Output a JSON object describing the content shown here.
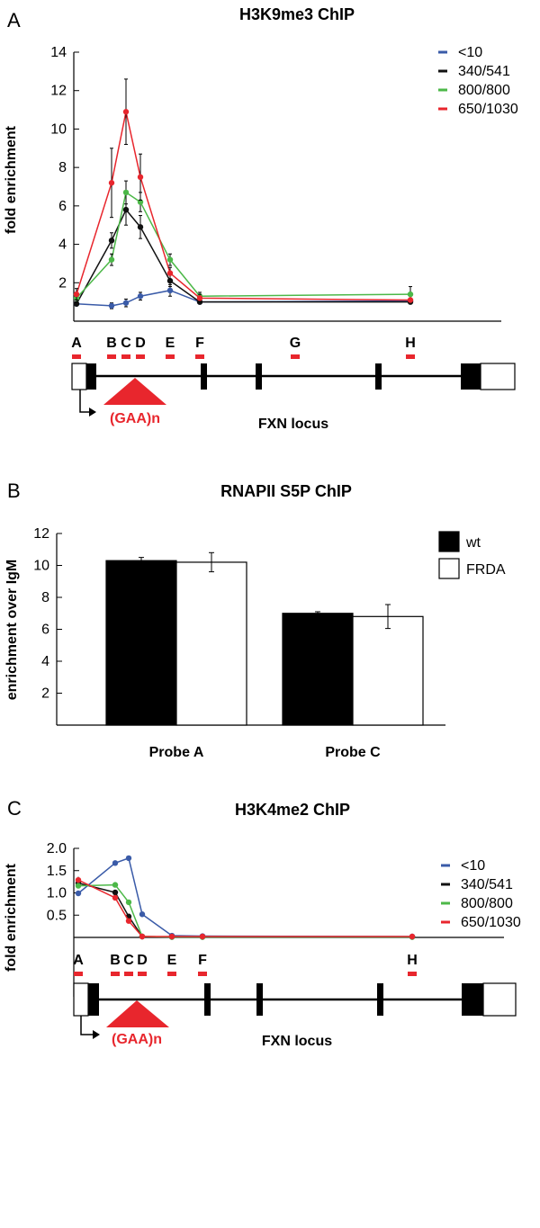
{
  "colors": {
    "blue": "#3a5ba8",
    "black": "#111111",
    "green": "#4cb848",
    "red": "#e8262d",
    "bar_wt": "#000000",
    "bar_frda": "#ffffff"
  },
  "panel_a": {
    "letter": "A",
    "locus_label": "FXN locus",
    "gaa_label": "(GAA)n",
    "probe_letters": [
      "A",
      "B",
      "C",
      "D",
      "E",
      "F",
      "G",
      "H"
    ]
  },
  "panel_b": {
    "letter": "B"
  },
  "panel_c": {
    "letter": "C",
    "locus_label": "FXN locus",
    "gaa_label": "(GAA)n",
    "probe_letters": [
      "A",
      "B",
      "C",
      "D",
      "E",
      "F",
      "H"
    ]
  },
  "chart_data": [
    {
      "type": "line",
      "title": "H3K9me3 ChIP",
      "xlabel": "",
      "ylabel": "fold enrichment",
      "x": [
        "A",
        "B",
        "C",
        "D",
        "E",
        "F",
        "H"
      ],
      "ylim": [
        0,
        14
      ],
      "yticks": [
        2,
        4,
        6,
        8,
        10,
        12,
        14
      ],
      "legend_position": "top-right",
      "series": [
        {
          "name": "<10",
          "color": "#3a5ba8",
          "values": [
            0.9,
            0.8,
            0.95,
            1.3,
            1.6,
            1.0,
            1.05
          ],
          "errors": [
            0.1,
            0.15,
            0.2,
            0.2,
            0.3,
            0.1,
            0.1
          ]
        },
        {
          "name": "340/541",
          "color": "#111111",
          "values": [
            0.9,
            4.2,
            5.8,
            4.9,
            2.1,
            1.0,
            1.0
          ],
          "errors": [
            0.1,
            0.4,
            0.8,
            0.6,
            0.3,
            0.1,
            0.1
          ]
        },
        {
          "name": "800/800",
          "color": "#4cb848",
          "values": [
            1.2,
            3.2,
            6.7,
            6.2,
            3.2,
            1.3,
            1.4
          ],
          "errors": [
            0.2,
            0.3,
            0.6,
            0.5,
            0.3,
            0.2,
            0.4
          ]
        },
        {
          "name": "650/1030",
          "color": "#e8262d",
          "values": [
            1.4,
            7.2,
            10.9,
            7.5,
            2.5,
            1.2,
            1.1
          ],
          "errors": [
            0.3,
            1.8,
            1.7,
            1.2,
            0.3,
            0.2,
            0.1
          ]
        }
      ]
    },
    {
      "type": "bar",
      "title": "RNAPII S5P ChIP",
      "xlabel": "",
      "ylabel": "enrichment over IgM",
      "categories": [
        "Probe A",
        "Probe C"
      ],
      "ylim": [
        0,
        12
      ],
      "yticks": [
        2,
        4,
        6,
        8,
        10,
        12
      ],
      "legend_position": "top-right",
      "series": [
        {
          "name": "wt",
          "color": "#000000",
          "values": [
            10.3,
            7.0
          ],
          "errors": [
            0.2,
            0.1
          ]
        },
        {
          "name": "FRDA",
          "color": "#ffffff",
          "values": [
            10.2,
            6.8
          ],
          "errors": [
            0.6,
            0.75
          ]
        }
      ]
    },
    {
      "type": "line",
      "title": "H3K4me2 ChIP",
      "xlabel": "",
      "ylabel": "fold enrichment",
      "x": [
        "A",
        "B",
        "C",
        "D",
        "E",
        "F",
        "H"
      ],
      "ylim": [
        0,
        2.0
      ],
      "yticks": [
        "0.5",
        "1.0",
        "1.5",
        "2.0"
      ],
      "legend_position": "top-right",
      "series": [
        {
          "name": "<10",
          "color": "#3a5ba8",
          "values": [
            0.99,
            1.67,
            1.78,
            0.52,
            0.04,
            0.03,
            0.02
          ],
          "errors": [
            0.02,
            0.03,
            0.04,
            0.02,
            0.01,
            0.01,
            0.01
          ]
        },
        {
          "name": "340/541",
          "color": "#111111",
          "values": [
            1.22,
            1.01,
            0.47,
            0.02,
            0.01,
            0.01,
            0.01
          ],
          "errors": [
            0.07,
            0.06,
            0.03,
            0.01,
            0.01,
            0.01,
            0.01
          ]
        },
        {
          "name": "800/800",
          "color": "#4cb848",
          "values": [
            1.16,
            1.18,
            0.79,
            0.02,
            0.01,
            0.01,
            0.01
          ],
          "errors": [
            0.05,
            0.04,
            0.04,
            0.01,
            0.01,
            0.01,
            0.01
          ]
        },
        {
          "name": "650/1030",
          "color": "#e8262d",
          "values": [
            1.29,
            0.89,
            0.37,
            0.02,
            0.02,
            0.02,
            0.02
          ],
          "errors": [
            0.07,
            0.04,
            0.02,
            0.01,
            0.01,
            0.01,
            0.01
          ]
        }
      ]
    }
  ]
}
